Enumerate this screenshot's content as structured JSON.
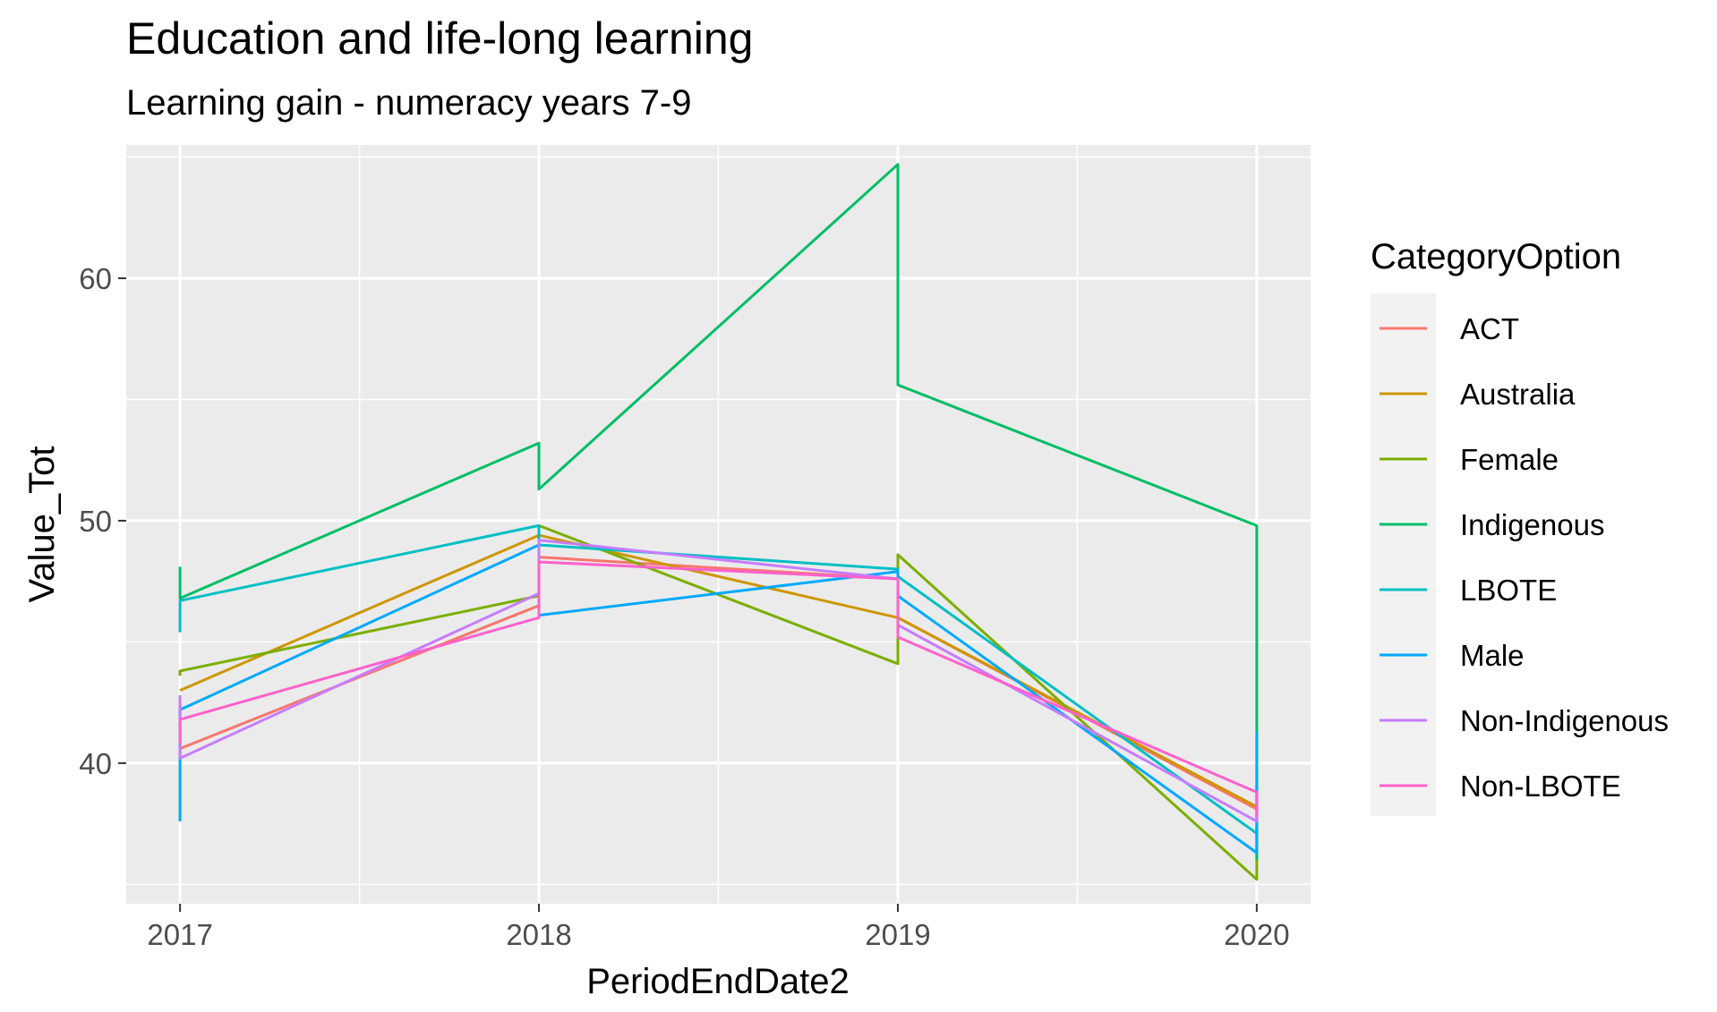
{
  "chart_data": {
    "type": "line",
    "title": "Education and life-long learning",
    "subtitle": "Learning gain - numeracy years 7-9",
    "xlabel": "PeriodEndDate2",
    "ylabel": "Value_Tot",
    "x_ticks": [
      "2017",
      "2018",
      "2019",
      "2020"
    ],
    "y_ticks": [
      40,
      50,
      60
    ],
    "xlim": [
      2016.85,
      2020.15
    ],
    "ylim": [
      34.2,
      65.5
    ],
    "grid": true,
    "legend": {
      "title": "CategoryOption",
      "position": "right"
    },
    "series": [
      {
        "name": "ACT",
        "color": "#F8766D",
        "points": [
          [
            2017,
            42.6
          ],
          [
            2017,
            40.6
          ],
          [
            2018,
            46.5
          ],
          [
            2018,
            48.5
          ],
          [
            2019,
            47.6
          ],
          [
            2019,
            46.0
          ],
          [
            2020,
            38.1
          ],
          [
            2020,
            38.0
          ]
        ]
      },
      {
        "name": "Australia",
        "color": "#CD9600",
        "points": [
          [
            2017,
            43.0
          ],
          [
            2018,
            49.4
          ],
          [
            2019,
            46.0
          ],
          [
            2020,
            38.2
          ]
        ]
      },
      {
        "name": "Female",
        "color": "#7CAE00",
        "points": [
          [
            2017,
            43.6
          ],
          [
            2017,
            43.8
          ],
          [
            2018,
            46.9
          ],
          [
            2018,
            49.8
          ],
          [
            2019,
            44.1
          ],
          [
            2019,
            48.6
          ],
          [
            2020,
            35.2
          ],
          [
            2020,
            37.3
          ]
        ]
      },
      {
        "name": "Indigenous",
        "color": "#00BE67",
        "points": [
          [
            2017,
            48.1
          ],
          [
            2017,
            46.8
          ],
          [
            2018,
            53.2
          ],
          [
            2018,
            51.3
          ],
          [
            2019,
            64.7
          ],
          [
            2019,
            55.6
          ],
          [
            2020,
            49.8
          ],
          [
            2020,
            36.0
          ]
        ]
      },
      {
        "name": "LBOTE",
        "color": "#00BFC4",
        "points": [
          [
            2017,
            45.4
          ],
          [
            2017,
            46.7
          ],
          [
            2018,
            49.8
          ],
          [
            2018,
            49.0
          ],
          [
            2019,
            48.0
          ],
          [
            2019,
            47.7
          ],
          [
            2020,
            37.1
          ],
          [
            2020,
            39.1
          ]
        ]
      },
      {
        "name": "Male",
        "color": "#00A9FF",
        "points": [
          [
            2017,
            37.6
          ],
          [
            2017,
            42.2
          ],
          [
            2018,
            49.0
          ],
          [
            2018,
            46.1
          ],
          [
            2019,
            47.9
          ],
          [
            2019,
            46.9
          ],
          [
            2020,
            36.3
          ],
          [
            2020,
            41.3
          ]
        ]
      },
      {
        "name": "Non-Indigenous",
        "color": "#C77CFF",
        "points": [
          [
            2017,
            42.8
          ],
          [
            2017,
            40.2
          ],
          [
            2018,
            47.0
          ],
          [
            2018,
            49.2
          ],
          [
            2019,
            47.6
          ],
          [
            2019,
            45.7
          ],
          [
            2020,
            37.6
          ],
          [
            2020,
            38.3
          ]
        ]
      },
      {
        "name": "Non-LBOTE",
        "color": "#FF61CC",
        "points": [
          [
            2017,
            40.8
          ],
          [
            2017,
            41.8
          ],
          [
            2018,
            46.0
          ],
          [
            2018,
            48.3
          ],
          [
            2019,
            47.6
          ],
          [
            2019,
            45.2
          ],
          [
            2020,
            38.8
          ],
          [
            2020,
            37.8
          ]
        ]
      }
    ]
  }
}
